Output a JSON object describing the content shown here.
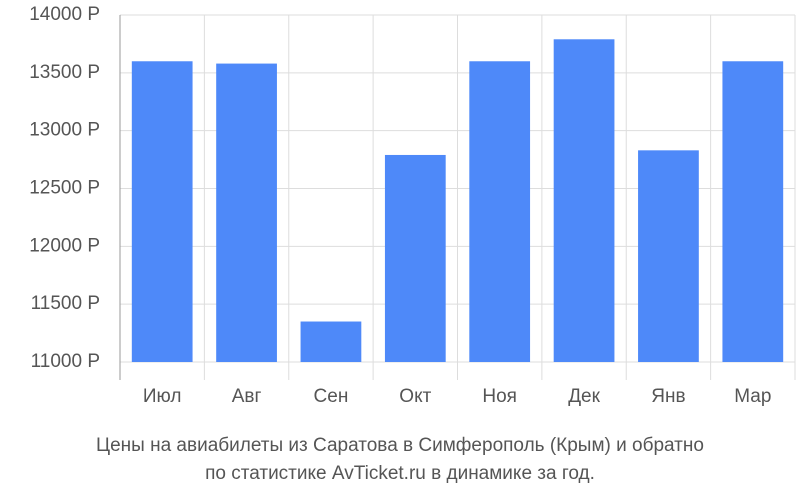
{
  "chart_data": {
    "type": "bar",
    "title": [
      "Цены на авиабилеты из Саратова в Симферополь (Крым) и обратно",
      "по статистике AvTicket.ru в динамике за год."
    ],
    "categories": [
      "Июл",
      "Авг",
      "Сен",
      "Окт",
      "Ноя",
      "Дек",
      "Янв",
      "Мар"
    ],
    "values": [
      13600,
      13580,
      11350,
      12790,
      13600,
      13790,
      12830,
      13600
    ],
    "color": "#4e89f9",
    "ylim": [
      11000,
      14000
    ],
    "yticks": [
      {
        "value": 11000,
        "label": "11000 Р"
      },
      {
        "value": 11500,
        "label": "11500 Р"
      },
      {
        "value": 12000,
        "label": "12000 Р"
      },
      {
        "value": 12500,
        "label": "12500 Р"
      },
      {
        "value": 13000,
        "label": "13000 Р"
      },
      {
        "value": 13500,
        "label": "13500 Р"
      },
      {
        "value": 14000,
        "label": "14000 Р"
      }
    ],
    "grid": true
  }
}
